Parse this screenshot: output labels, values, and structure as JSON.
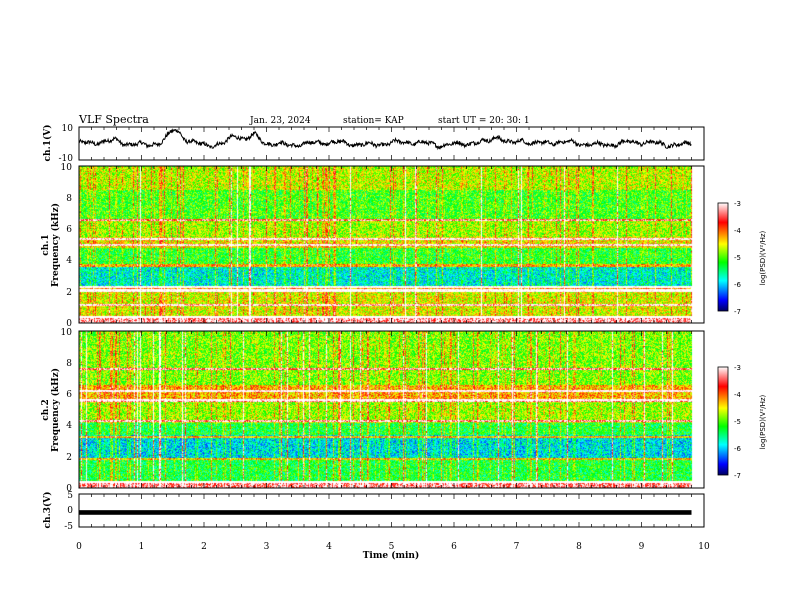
{
  "header": {
    "title": "VLF Spectra",
    "date": "Jan. 23, 2024",
    "station": "station= KAP",
    "start": "start  UT  =   20: 30: 1"
  },
  "chart_data": [
    {
      "type": "line",
      "name": "ch1-waveform-panel",
      "ylabel": "ch.1(V)",
      "ylim": [
        -10,
        10
      ],
      "yticks": [
        "10",
        "-10"
      ],
      "x_range_min": [
        0,
        9.8
      ],
      "description_values_approx_V": "oscillates roughly between -3 and +4 V, with peaks near 1.5, 2.5, 6.7 min"
    },
    {
      "type": "heatmap",
      "name": "ch1-spectrogram",
      "ylabel": "ch.1\nFrequency (kHz)",
      "ylim": [
        0,
        10
      ],
      "yticks": [
        "0",
        "2",
        "4",
        "6",
        "8",
        "10"
      ],
      "colorbar": {
        "label": "log(PSD)(V²/Hz)",
        "range": [
          -7,
          -3
        ],
        "ticks": [
          "-3",
          "-4",
          "-5",
          "-6",
          "-7"
        ]
      },
      "bands_kHz": [
        {
          "from": 0,
          "to": 0.5,
          "level": -3.3
        },
        {
          "from": 0.5,
          "to": 2.0,
          "level": -4.6
        },
        {
          "from": 2.0,
          "to": 2.4,
          "level": -4.2
        },
        {
          "from": 2.4,
          "to": 3.8,
          "level": -5.8
        },
        {
          "from": 3.8,
          "to": 4.8,
          "level": -5.2
        },
        {
          "from": 4.8,
          "to": 5.5,
          "level": -4.5
        },
        {
          "from": 5.5,
          "to": 6.6,
          "level": -4.8
        },
        {
          "from": 6.6,
          "to": 8.5,
          "level": -5.1
        },
        {
          "from": 8.5,
          "to": 10,
          "level": -4.7
        }
      ],
      "narrowband_lines_kHz": [
        0.4,
        1.2,
        2.1,
        2.3,
        3.7,
        5.0,
        5.4,
        6.6
      ]
    },
    {
      "type": "heatmap",
      "name": "ch2-spectrogram",
      "ylabel": "ch.2\nFrequency (kHz)",
      "ylim": [
        0,
        10
      ],
      "yticks": [
        "0",
        "2",
        "4",
        "6",
        "8",
        "10"
      ],
      "colorbar": {
        "label": "log(PSD)(V²/Hz)",
        "range": [
          -7,
          -3
        ],
        "ticks": [
          "-3",
          "-4",
          "-5",
          "-6",
          "-7"
        ]
      },
      "bands_kHz": [
        {
          "from": 0,
          "to": 0.5,
          "level": -3.4
        },
        {
          "from": 0.5,
          "to": 1.8,
          "level": -5.3
        },
        {
          "from": 1.8,
          "to": 3.4,
          "level": -5.9
        },
        {
          "from": 3.4,
          "to": 4.2,
          "level": -5.3
        },
        {
          "from": 4.2,
          "to": 5.6,
          "level": -4.8
        },
        {
          "from": 5.6,
          "to": 6.6,
          "level": -4.3
        },
        {
          "from": 6.6,
          "to": 10,
          "level": -4.9
        }
      ],
      "narrowband_lines_kHz": [
        0.4,
        1.9,
        3.3,
        4.3,
        5.6,
        6.2,
        7.6
      ]
    },
    {
      "type": "line",
      "name": "ch3-waveform-panel",
      "ylabel": "ch.3(V)",
      "ylim": [
        -5,
        5
      ],
      "yticks": [
        "5",
        "0",
        "-5"
      ],
      "level_V": [
        -1.3,
        0.1
      ]
    }
  ],
  "xaxis": {
    "label": "Time (min)",
    "range": [
      0,
      10
    ],
    "ticks": [
      "0",
      "1",
      "2",
      "3",
      "4",
      "5",
      "6",
      "7",
      "8",
      "9",
      "10"
    ],
    "data_end_min": 9.8
  }
}
